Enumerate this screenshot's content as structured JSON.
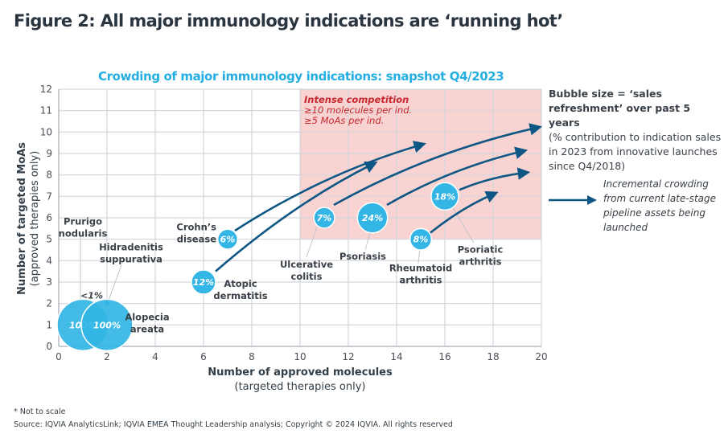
{
  "figure_title": "Figure 2: All major immunology indications are ‘running hot’",
  "colors": {
    "bubble": "#33b5e5",
    "arrow": "#0e5785",
    "zone_fill": "#f8d3d2",
    "zone_text": "#c8262d",
    "title_accent": "#25aee2"
  },
  "legend": {
    "size_title": "Bubble size = ‘sales refreshment’ over past 5 years",
    "size_desc": "(% contribution to indication sales in 2023 from innovative launches since Q4/2018)",
    "arrow_desc": "Incremental crowding from current late-stage pipeline assets being launched"
  },
  "footnote": "* Not to scale",
  "source": "Source: IQVIA AnalyticsLink; IQVIA EMEA Thought Leadership analysis; Copyright © 2024 IQVIA. All rights reserved",
  "chart_data": {
    "type": "scatter",
    "subtype": "bubble",
    "title": "Crowding of major immunology indications: snapshot Q4/2023",
    "xlabel": "Number of approved molecules",
    "xlabel_sub": "(targeted therapies only)",
    "ylabel": "Number of targeted MoAs",
    "ylabel_sub": "(approved therapies only)",
    "xlim": [
      0,
      20
    ],
    "ylim": [
      0,
      12
    ],
    "xticks": [
      0,
      2,
      4,
      6,
      8,
      10,
      12,
      14,
      16,
      18,
      20
    ],
    "yticks": [
      0,
      1,
      2,
      3,
      4,
      5,
      6,
      7,
      8,
      9,
      10,
      11,
      12
    ],
    "grid": true,
    "zone": {
      "label": "Intense competition",
      "line1": "≥10 molecules per ind.",
      "line2": "≥5 MoAs per ind.",
      "x_min": 10,
      "x_max": 20,
      "y_min": 5,
      "y_max": 12
    },
    "points": [
      {
        "name": "Prurigo nodularis",
        "x": 1,
        "y": 1,
        "size_pct": 100,
        "label": "100%"
      },
      {
        "name": "Alopecia areata",
        "x": 2,
        "y": 1,
        "size_pct": 100,
        "label": "100%"
      },
      {
        "name": "Hidradenitis suppurativa",
        "x": 2,
        "y": 2,
        "size_pct": 0.5,
        "label": "<1%"
      },
      {
        "name": "Crohn’s disease",
        "x": 7,
        "y": 5,
        "size_pct": 6,
        "label": "6%"
      },
      {
        "name": "Atopic dermatitis",
        "x": 6,
        "y": 3,
        "size_pct": 12,
        "label": "12%"
      },
      {
        "name": "Ulcerative colitis",
        "x": 11,
        "y": 6,
        "size_pct": 7,
        "label": "7%"
      },
      {
        "name": "Psoriasis",
        "x": 13,
        "y": 6,
        "size_pct": 24,
        "label": "24%"
      },
      {
        "name": "Rheumatoid arthritis",
        "x": 15,
        "y": 5,
        "size_pct": 8,
        "label": "8%"
      },
      {
        "name": "Psoriatic arthritis",
        "x": 16,
        "y": 7,
        "size_pct": 18,
        "label": "18%"
      }
    ],
    "pipeline_arrows": [
      {
        "indication": "Crohn’s disease",
        "from": [
          7.3,
          5.4
        ],
        "to": [
          15,
          9.4
        ]
      },
      {
        "indication": "Atopic dermatitis",
        "from": [
          6.5,
          3.5
        ],
        "to": [
          13,
          8.5
        ]
      },
      {
        "indication": "Ulcerative colitis",
        "from": [
          11.4,
          6.6
        ],
        "to": [
          19.8,
          10.2
        ]
      },
      {
        "indication": "Psoriasis",
        "from": [
          13.6,
          6.6
        ],
        "to": [
          19.2,
          9.1
        ]
      },
      {
        "indication": "Psoriatic arthritis",
        "from": [
          16.6,
          7.3
        ],
        "to": [
          19.3,
          8.1
        ]
      },
      {
        "indication": "Rheumatoid arthritis",
        "from": [
          15.4,
          5.3
        ],
        "to": [
          18,
          7.1
        ]
      }
    ]
  }
}
